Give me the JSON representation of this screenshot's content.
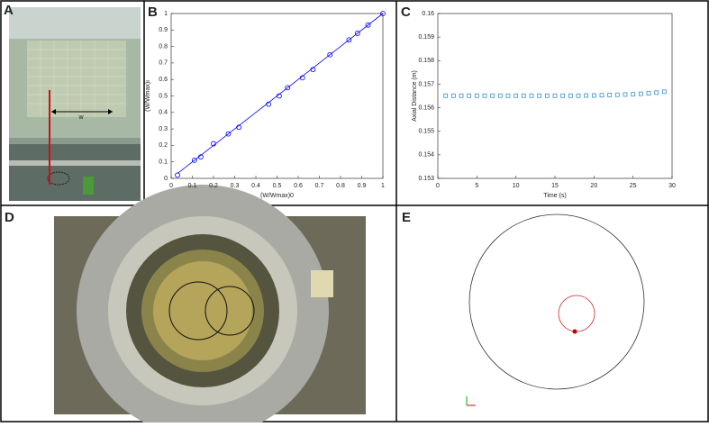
{
  "panels": [
    "A",
    "B",
    "C",
    "D",
    "E"
  ],
  "photo_a_label": "w",
  "chart_data": [
    {
      "type": "scatter",
      "xlabel": "(W/Wmax)0",
      "ylabel": "(W/Wmax)i",
      "xlim": [
        0,
        1
      ],
      "ylim": [
        0,
        1
      ],
      "xticks": [
        0,
        0.1,
        0.2,
        0.3,
        0.4,
        0.5,
        0.6,
        0.7,
        0.8,
        0.9,
        1
      ],
      "yticks": [
        0,
        0.1,
        0.2,
        0.3,
        0.4,
        0.5,
        0.6,
        0.7,
        0.8,
        0.9,
        1
      ],
      "series": [
        {
          "color": "#0000ff",
          "marker": "circle",
          "x": [
            0.03,
            0.11,
            0.14,
            0.2,
            0.27,
            0.32,
            0.46,
            0.51,
            0.55,
            0.62,
            0.67,
            0.75,
            0.84,
            0.88,
            0.93,
            1
          ],
          "values": [
            0.02,
            0.11,
            0.13,
            0.21,
            0.27,
            0.31,
            0.45,
            0.5,
            0.55,
            0.61,
            0.66,
            0.75,
            0.84,
            0.88,
            0.93,
            1
          ]
        },
        {
          "color": "#0000ff",
          "marker": "line",
          "x": [
            0.03,
            1
          ],
          "values": [
            0.03,
            1
          ]
        }
      ]
    },
    {
      "type": "scatter",
      "xlabel": "Time (s)",
      "ylabel": "Axial Distance (m)",
      "xlim": [
        0,
        30
      ],
      "ylim": [
        0.153,
        0.16
      ],
      "xticks": [
        0,
        5,
        10,
        15,
        20,
        25,
        30
      ],
      "yticks": [
        0.153,
        0.154,
        0.155,
        0.156,
        0.157,
        0.158,
        0.159,
        0.16
      ],
      "series": [
        {
          "color": "#3a8fc8",
          "marker": "square",
          "x": [
            1,
            2,
            3,
            4,
            5,
            6,
            7,
            8,
            9,
            10,
            11,
            12,
            13,
            14,
            15,
            16,
            17,
            18,
            19,
            20,
            21,
            22,
            23,
            24,
            25,
            26,
            27,
            28,
            29
          ],
          "values": [
            0.15651,
            0.15651,
            0.15651,
            0.15651,
            0.15651,
            0.15651,
            0.15651,
            0.15651,
            0.15651,
            0.15651,
            0.15651,
            0.15651,
            0.15651,
            0.15651,
            0.15651,
            0.15651,
            0.15651,
            0.15651,
            0.15652,
            0.15652,
            0.15653,
            0.15654,
            0.15655,
            0.15656,
            0.15657,
            0.15659,
            0.15661,
            0.15664,
            0.15668
          ]
        }
      ]
    }
  ]
}
